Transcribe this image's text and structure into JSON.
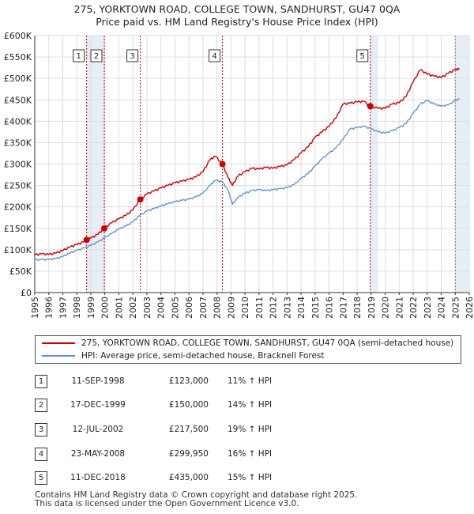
{
  "chart_data": {
    "type": "line",
    "title": "275, YORKTOWN ROAD, COLLEGE TOWN, SANDHURST, GU47 0QA",
    "subtitle": "Price paid vs. HM Land Registry's House Price Index (HPI)",
    "xlim": [
      1995,
      2026
    ],
    "ylim": [
      0,
      600000
    ],
    "x_ticks": [
      "1995",
      "1996",
      "1997",
      "1998",
      "1999",
      "2000",
      "2001",
      "2002",
      "2003",
      "2004",
      "2005",
      "2006",
      "2007",
      "2008",
      "2009",
      "2010",
      "2011",
      "2012",
      "2013",
      "2014",
      "2015",
      "2016",
      "2017",
      "2018",
      "2019",
      "2020",
      "2021",
      "2022",
      "2023",
      "2024",
      "2025",
      "2026"
    ],
    "y_ticks": [
      {
        "value": 0,
        "label": "£0"
      },
      {
        "value": 50000,
        "label": "£50K"
      },
      {
        "value": 100000,
        "label": "£100K"
      },
      {
        "value": 150000,
        "label": "£150K"
      },
      {
        "value": 200000,
        "label": "£200K"
      },
      {
        "value": 250000,
        "label": "£250K"
      },
      {
        "value": 300000,
        "label": "£300K"
      },
      {
        "value": 350000,
        "label": "£350K"
      },
      {
        "value": 400000,
        "label": "£400K"
      },
      {
        "value": 450000,
        "label": "£450K"
      },
      {
        "value": 500000,
        "label": "£500K"
      },
      {
        "value": 550000,
        "label": "£550K"
      },
      {
        "value": 600000,
        "label": "£600K"
      }
    ],
    "grid": true,
    "shaded_spans": [
      [
        1998.7,
        1999.96
      ],
      [
        2018.95,
        2019.5
      ],
      [
        2025.0,
        2026.0
      ]
    ],
    "series": [
      {
        "name": "275, YORKTOWN ROAD, COLLEGE TOWN, SANDHURST, GU47 0QA (semi-detached house)",
        "color": "#cc0000",
        "x": [
          1995.0,
          1995.5,
          1996.0,
          1996.5,
          1997.0,
          1997.5,
          1998.0,
          1998.5,
          1998.7,
          1999.0,
          1999.5,
          1999.96,
          2000.5,
          2001.0,
          2001.5,
          2002.0,
          2002.53,
          2003.0,
          2003.5,
          2004.0,
          2004.5,
          2005.0,
          2005.5,
          2006.0,
          2006.5,
          2007.0,
          2007.5,
          2007.9,
          2008.39,
          2008.8,
          2009.1,
          2009.5,
          2010.0,
          2010.5,
          2011.0,
          2011.5,
          2012.0,
          2012.5,
          2013.0,
          2013.5,
          2014.0,
          2014.5,
          2015.0,
          2015.5,
          2016.0,
          2016.5,
          2017.0,
          2017.5,
          2018.0,
          2018.5,
          2018.94,
          2019.5,
          2020.0,
          2020.5,
          2021.0,
          2021.5,
          2022.0,
          2022.5,
          2023.0,
          2023.5,
          2024.0,
          2024.5,
          2025.0,
          2025.3
        ],
        "values": [
          88000,
          90000,
          89000,
          92000,
          98000,
          106000,
          112000,
          118000,
          123000,
          127000,
          136000,
          150000,
          163000,
          172000,
          180000,
          193000,
          217500,
          230000,
          237000,
          244000,
          250000,
          256000,
          260000,
          264000,
          270000,
          282000,
          310000,
          318000,
          299950,
          268000,
          250000,
          272000,
          282000,
          290000,
          288000,
          292000,
          290000,
          294000,
          298000,
          310000,
          326000,
          340000,
          362000,
          375000,
          388000,
          408000,
          440000,
          442000,
          445000,
          446000,
          435000,
          430000,
          430000,
          440000,
          443000,
          458000,
          492000,
          520000,
          510000,
          505000,
          502000,
          512000,
          520000,
          522000
        ]
      },
      {
        "name": "HPI: Average price, semi-detached house, Bracknell Forest",
        "color": "#5b8fcf",
        "x": [
          1995.0,
          1995.5,
          1996.0,
          1996.5,
          1997.0,
          1997.5,
          1998.0,
          1998.5,
          1999.0,
          1999.5,
          2000.0,
          2000.5,
          2001.0,
          2001.5,
          2002.0,
          2002.5,
          2003.0,
          2003.5,
          2004.0,
          2004.5,
          2005.0,
          2005.5,
          2006.0,
          2006.5,
          2007.0,
          2007.5,
          2007.9,
          2008.4,
          2008.8,
          2009.1,
          2009.5,
          2010.0,
          2010.5,
          2011.0,
          2011.5,
          2012.0,
          2012.5,
          2013.0,
          2013.5,
          2014.0,
          2014.5,
          2015.0,
          2015.5,
          2016.0,
          2016.5,
          2017.0,
          2017.5,
          2018.0,
          2018.5,
          2019.0,
          2019.5,
          2020.0,
          2020.5,
          2021.0,
          2021.5,
          2022.0,
          2022.5,
          2023.0,
          2023.5,
          2024.0,
          2024.5,
          2025.0,
          2025.3
        ],
        "values": [
          76000,
          77000,
          77000,
          79000,
          84000,
          92000,
          98000,
          104000,
          110000,
          118000,
          128000,
          138000,
          148000,
          155000,
          165000,
          180000,
          190000,
          196000,
          202000,
          207000,
          212000,
          215000,
          218000,
          223000,
          232000,
          250000,
          262000,
          258000,
          238000,
          206000,
          222000,
          232000,
          238000,
          240000,
          238000,
          240000,
          242000,
          245000,
          252000,
          266000,
          278000,
          295000,
          312000,
          325000,
          338000,
          358000,
          382000,
          385000,
          388000,
          382000,
          375000,
          372000,
          378000,
          385000,
          395000,
          418000,
          440000,
          448000,
          440000,
          435000,
          438000,
          448000,
          452000
        ]
      }
    ],
    "sales": [
      {
        "label": "1",
        "x": 1998.7,
        "value": 123000
      },
      {
        "label": "2",
        "x": 1999.96,
        "value": 150000
      },
      {
        "label": "3",
        "x": 2002.53,
        "value": 217500
      },
      {
        "label": "4",
        "x": 2008.39,
        "value": 299950
      },
      {
        "label": "5",
        "x": 2018.94,
        "value": 435000
      }
    ]
  },
  "legend": {
    "property": "275, YORKTOWN ROAD, COLLEGE TOWN, SANDHURST, GU47 0QA (semi-detached house)",
    "hpi": "HPI: Average price, semi-detached house, Bracknell Forest"
  },
  "sales_table": [
    {
      "num": "1",
      "date": "11-SEP-1998",
      "price": "£123,000",
      "hpi": "11% ↑ HPI"
    },
    {
      "num": "2",
      "date": "17-DEC-1999",
      "price": "£150,000",
      "hpi": "14% ↑ HPI"
    },
    {
      "num": "3",
      "date": "12-JUL-2002",
      "price": "£217,500",
      "hpi": "19% ↑ HPI"
    },
    {
      "num": "4",
      "date": "23-MAY-2008",
      "price": "£299,950",
      "hpi": "16% ↑ HPI"
    },
    {
      "num": "5",
      "date": "11-DEC-2018",
      "price": "£435,000",
      "hpi": "15% ↑ HPI"
    }
  ],
  "footer": {
    "line1": "Contains HM Land Registry data © Crown copyright and database right 2025.",
    "line2": "This data is licensed under the Open Government Licence v3.0."
  }
}
